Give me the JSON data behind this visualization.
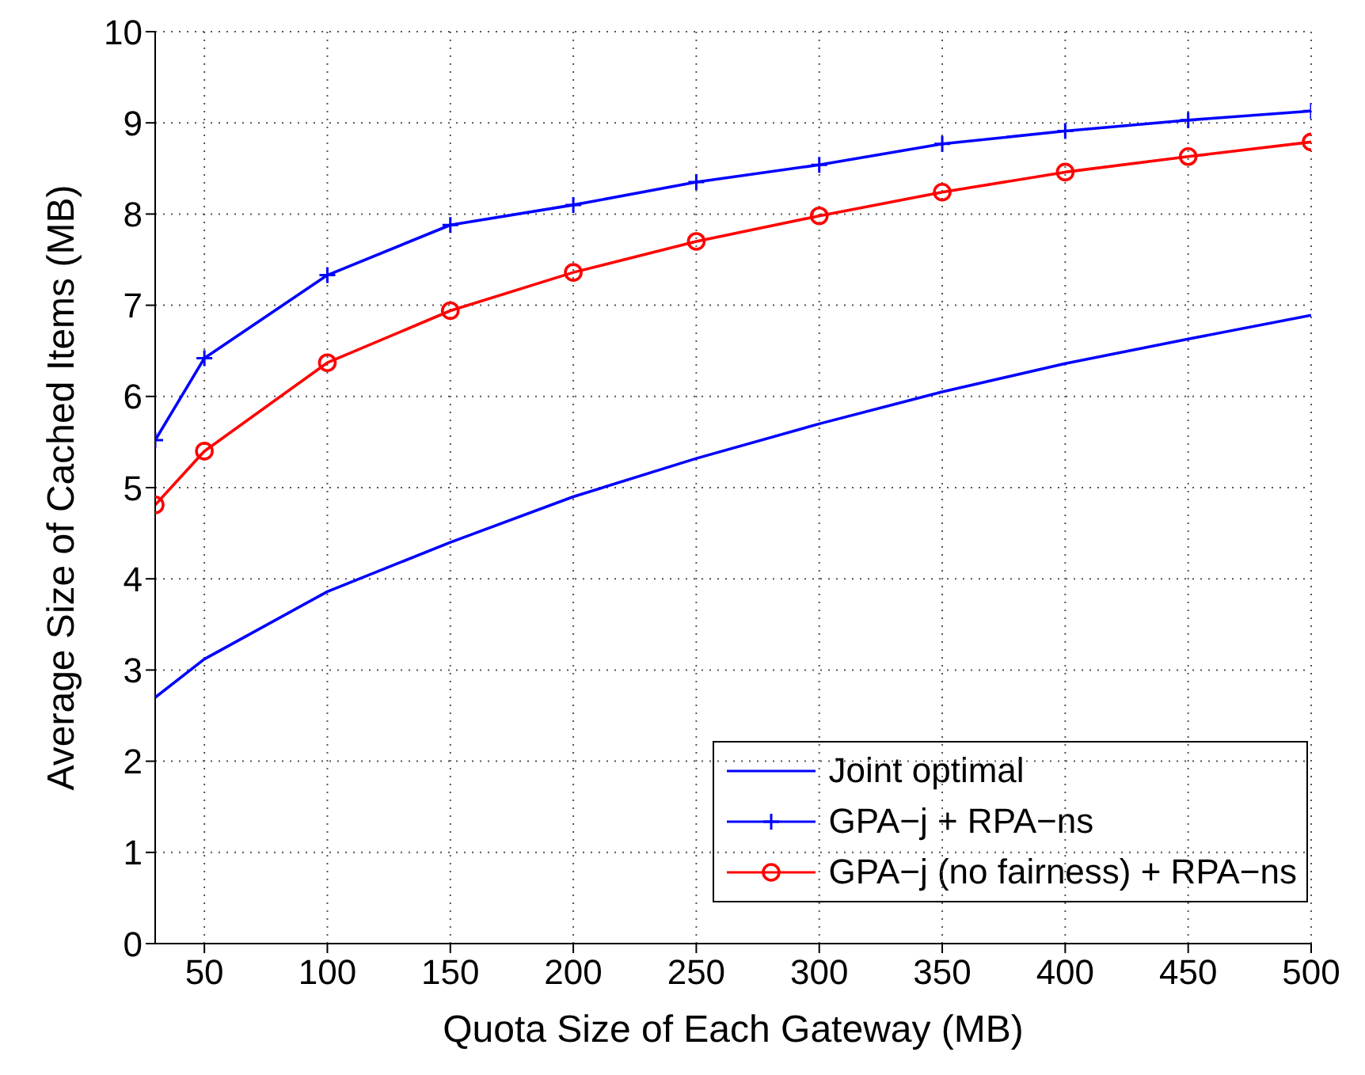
{
  "chart_data": {
    "type": "line",
    "xlabel": "Quota Size of Each Gateway (MB)",
    "ylabel": "Average Size of Cached Items (MB)",
    "x": [
      30,
      50,
      100,
      150,
      200,
      250,
      300,
      350,
      400,
      450,
      500
    ],
    "series": [
      {
        "name": "Joint optimal",
        "color": "#0000ff",
        "marker": "none",
        "values": [
          2.7,
          3.12,
          3.86,
          4.4,
          4.9,
          5.32,
          5.7,
          6.05,
          6.36,
          6.63,
          6.89
        ]
      },
      {
        "name": "GPA−j + RPA−ns",
        "color": "#0000ff",
        "marker": "cross",
        "values": [
          5.52,
          6.42,
          7.33,
          7.88,
          8.1,
          8.35,
          8.54,
          8.77,
          8.91,
          9.03,
          9.13
        ]
      },
      {
        "name": "GPA−j (no fairness) + RPA−ns",
        "color": "#ff0000",
        "marker": "circle",
        "values": [
          4.81,
          5.4,
          6.37,
          6.94,
          7.36,
          7.7,
          7.98,
          8.24,
          8.46,
          8.63,
          8.79
        ]
      }
    ],
    "xlim": [
      30,
      500
    ],
    "xticks": [
      50,
      100,
      150,
      200,
      250,
      300,
      350,
      400,
      450,
      500
    ],
    "ylim": [
      0,
      10
    ],
    "yticks": [
      0,
      1,
      2,
      3,
      4,
      5,
      6,
      7,
      8,
      9,
      10
    ],
    "grid": true,
    "line_style": "solid",
    "legend": "bottom right"
  }
}
